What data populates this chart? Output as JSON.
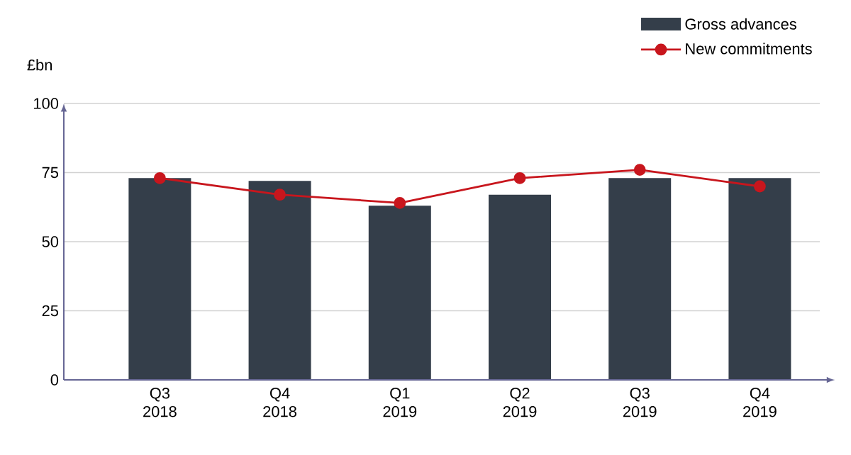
{
  "chart_data": {
    "type": "bar",
    "ylabel": "£bn",
    "categories": [
      "Q3 2018",
      "Q4 2018",
      "Q1 2019",
      "Q2 2019",
      "Q3 2019",
      "Q4 2019"
    ],
    "series": [
      {
        "name": "Gross advances",
        "color": "#343e4a",
        "values": [
          73,
          72,
          63,
          67,
          73,
          73
        ]
      },
      {
        "name": "New commitments",
        "type": "line",
        "color": "#c8161d",
        "marker": "circle",
        "values": [
          73,
          67,
          64,
          73,
          76,
          70
        ]
      }
    ],
    "ylim": [
      0,
      100
    ],
    "yticks": [
      0,
      25,
      50,
      75,
      100
    ],
    "grid": "y",
    "legend": "top right"
  }
}
